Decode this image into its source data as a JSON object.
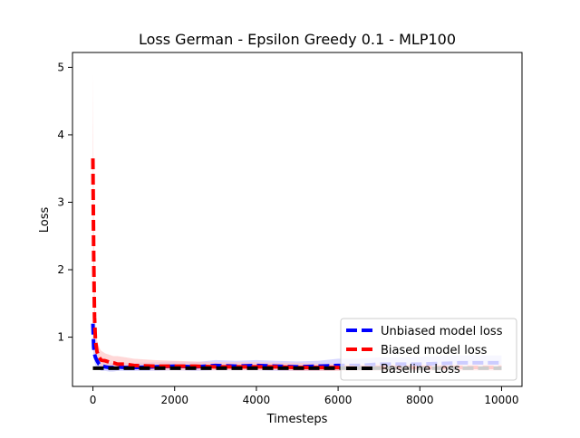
{
  "chart_data": {
    "type": "line",
    "title": "Loss German - Epsilon Greedy 0.1 - MLP100",
    "xlabel": "Timesteps",
    "ylabel": "Loss",
    "xlim": [
      -500,
      10500
    ],
    "ylim": [
      0.27,
      5.22
    ],
    "xticks": [
      0,
      2000,
      4000,
      6000,
      8000,
      10000
    ],
    "yticks": [
      1,
      2,
      3,
      4,
      5
    ],
    "grid": false,
    "legend_position": "lower-right",
    "series": [
      {
        "name": "Unbiased model loss",
        "color": "#0000ff",
        "band_color": "#c8c8ff",
        "line_style": "dashed",
        "x": [
          0,
          20,
          40,
          60,
          100,
          150,
          200,
          300,
          400,
          500,
          600,
          800,
          1000,
          1500,
          2000,
          2500,
          3000,
          3500,
          4000,
          4500,
          5000,
          5500,
          6000,
          6500,
          7000,
          7500,
          8000,
          8500,
          9000,
          9500,
          10000
        ],
        "y": [
          1.2,
          0.85,
          0.75,
          0.7,
          0.65,
          0.6,
          0.58,
          0.56,
          0.55,
          0.55,
          0.56,
          0.55,
          0.55,
          0.56,
          0.57,
          0.56,
          0.58,
          0.57,
          0.58,
          0.57,
          0.56,
          0.57,
          0.58,
          0.58,
          0.6,
          0.6,
          0.6,
          0.61,
          0.62,
          0.62,
          0.62
        ],
        "band_lower": [
          0.9,
          0.7,
          0.62,
          0.58,
          0.55,
          0.52,
          0.5,
          0.5,
          0.49,
          0.49,
          0.5,
          0.5,
          0.5,
          0.5,
          0.51,
          0.5,
          0.51,
          0.51,
          0.51,
          0.5,
          0.5,
          0.5,
          0.51,
          0.51,
          0.52,
          0.52,
          0.52,
          0.52,
          0.53,
          0.53,
          0.53
        ],
        "band_upper": [
          1.3,
          1.0,
          0.9,
          0.82,
          0.75,
          0.7,
          0.66,
          0.63,
          0.62,
          0.62,
          0.63,
          0.62,
          0.62,
          0.63,
          0.64,
          0.63,
          0.66,
          0.65,
          0.66,
          0.65,
          0.64,
          0.65,
          0.68,
          0.68,
          0.7,
          0.7,
          0.71,
          0.72,
          0.73,
          0.73,
          0.73
        ]
      },
      {
        "name": "Biased model loss",
        "color": "#ff0000",
        "band_color": "#ffc8c8",
        "line_style": "dashed",
        "x": [
          0,
          20,
          40,
          60,
          100,
          150,
          200,
          300,
          400,
          500,
          600,
          800,
          1000,
          1500,
          2000,
          2500,
          3000,
          3500,
          4000,
          4500,
          5000,
          5500,
          6000,
          6500,
          7000,
          7500,
          8000,
          8500,
          9000,
          9500,
          10000
        ],
        "y": [
          3.65,
          2.2,
          1.3,
          0.95,
          0.78,
          0.7,
          0.66,
          0.65,
          0.63,
          0.62,
          0.6,
          0.6,
          0.58,
          0.57,
          0.57,
          0.57,
          0.56,
          0.56,
          0.56,
          0.56,
          0.55,
          0.55,
          0.55,
          0.55,
          0.55,
          0.55,
          0.55,
          0.55,
          0.55,
          0.55,
          0.55
        ],
        "band_lower": [
          2.5,
          1.6,
          1.0,
          0.8,
          0.66,
          0.6,
          0.57,
          0.56,
          0.55,
          0.54,
          0.53,
          0.53,
          0.52,
          0.51,
          0.51,
          0.51,
          0.51,
          0.51,
          0.51,
          0.51,
          0.5,
          0.5,
          0.5,
          0.5,
          0.5,
          0.5,
          0.5,
          0.5,
          0.5,
          0.5,
          0.5
        ],
        "band_upper": [
          4.9,
          3.0,
          1.8,
          1.2,
          0.95,
          0.85,
          0.8,
          0.76,
          0.74,
          0.72,
          0.72,
          0.7,
          0.68,
          0.66,
          0.65,
          0.64,
          0.63,
          0.63,
          0.63,
          0.62,
          0.62,
          0.61,
          0.61,
          0.61,
          0.61,
          0.6,
          0.6,
          0.6,
          0.6,
          0.6,
          0.6
        ]
      },
      {
        "name": "Baseline Loss",
        "color": "#000000",
        "line_style": "dashed",
        "x": [
          0,
          10000
        ],
        "y": [
          0.54,
          0.54
        ]
      }
    ]
  }
}
